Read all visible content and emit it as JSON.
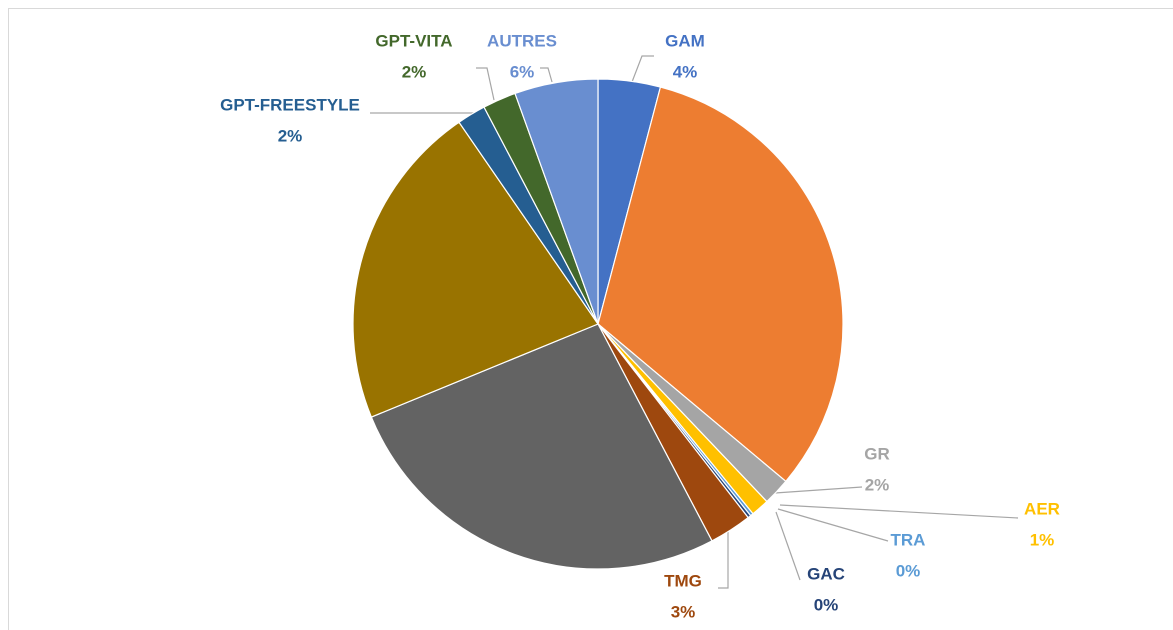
{
  "chart_data": {
    "type": "pie",
    "categories": [
      "GAM",
      null,
      "GR",
      "AER",
      "TRA",
      "GAC",
      "TMG",
      null,
      null,
      "GPT-FREESTYLE",
      "GPT-VITA",
      "AUTRES"
    ],
    "values": [
      4.1,
      32.0,
      1.8,
      1.2,
      0.2,
      0.2,
      2.8,
      26.5,
      21.6,
      1.9,
      2.2,
      5.5
    ],
    "value_labels": [
      "4%",
      null,
      "2%",
      "1%",
      "0%",
      "0%",
      "3%",
      null,
      null,
      "2%",
      "2%",
      "6%"
    ],
    "colors": [
      "#4472c4",
      "#ed7d31",
      "#a5a5a5",
      "#ffc000",
      "#5b9bd5",
      "#264478",
      "#9e480e",
      "#636363",
      "#997300",
      "#255e91",
      "#43682b",
      "#698ed0"
    ]
  }
}
